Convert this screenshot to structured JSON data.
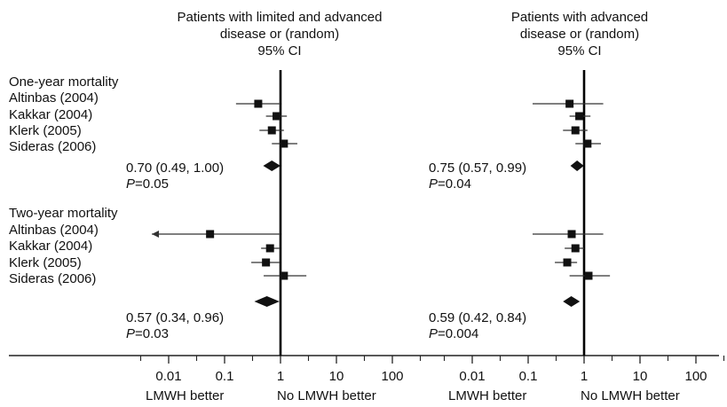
{
  "panels": [
    {
      "header": [
        "Patients with limited and advanced",
        "disease or (random)",
        "95% CI"
      ],
      "groups": [
        {
          "title": "One-year mortality",
          "pooled": {
            "estimate": 0.7,
            "ci": [
              0.49,
              1.0
            ],
            "text": "0.70 (0.49, 1.00)",
            "p_label": "P",
            "p_value": "=0.05"
          },
          "studies": [
            {
              "name": "Altinbas (2004)",
              "estimate": 0.4,
              "ci": [
                0.16,
                1.0
              ]
            },
            {
              "name": "Kakkar (2004)",
              "estimate": 0.85,
              "ci": [
                0.55,
                1.3
              ]
            },
            {
              "name": "Klerk (2005)",
              "estimate": 0.7,
              "ci": [
                0.42,
                1.15
              ]
            },
            {
              "name": "Sideras (2006)",
              "estimate": 1.15,
              "ci": [
                0.7,
                2.0
              ]
            }
          ]
        },
        {
          "title": "Two-year mortality",
          "pooled": {
            "estimate": 0.57,
            "ci": [
              0.34,
              0.96
            ],
            "text": "0.57 (0.34, 0.96)",
            "p_label": "P",
            "p_value": "=0.03"
          },
          "studies": [
            {
              "name": "Altinbas (2004)",
              "estimate": 0.055,
              "ci": [
                0.005,
                1.0
              ],
              "arrow_left": true
            },
            {
              "name": "Kakkar (2004)",
              "estimate": 0.65,
              "ci": [
                0.45,
                0.95
              ]
            },
            {
              "name": "Klerk (2005)",
              "estimate": 0.55,
              "ci": [
                0.3,
                0.95
              ]
            },
            {
              "name": "Sideras (2006)",
              "estimate": 1.15,
              "ci": [
                0.5,
                2.9
              ]
            }
          ]
        }
      ]
    },
    {
      "header": [
        "Patients with advanced",
        "disease or (random)",
        "95% CI"
      ],
      "groups": [
        {
          "title": "",
          "pooled": {
            "estimate": 0.75,
            "ci": [
              0.57,
              0.99
            ],
            "text": "0.75 (0.57, 0.99)",
            "p_label": "P",
            "p_value": "=0.04"
          },
          "studies": [
            {
              "name": "Altinbas (2004)",
              "estimate": 0.55,
              "ci": [
                0.12,
                2.2
              ]
            },
            {
              "name": "Kakkar (2004)",
              "estimate": 0.82,
              "ci": [
                0.55,
                1.3
              ]
            },
            {
              "name": "Klerk (2005)",
              "estimate": 0.7,
              "ci": [
                0.42,
                1.15
              ]
            },
            {
              "name": "Sideras (2006)",
              "estimate": 1.15,
              "ci": [
                0.7,
                2.0
              ]
            }
          ]
        },
        {
          "title": "",
          "pooled": {
            "estimate": 0.59,
            "ci": [
              0.42,
              0.84
            ],
            "text": "0.59 (0.42, 0.84)",
            "p_label": "P",
            "p_value": "=0.004"
          },
          "studies": [
            {
              "name": "Altinbas (2004)",
              "estimate": 0.6,
              "ci": [
                0.12,
                2.2
              ]
            },
            {
              "name": "Kakkar (2004)",
              "estimate": 0.7,
              "ci": [
                0.45,
                1.0
              ]
            },
            {
              "name": "Klerk (2005)",
              "estimate": 0.5,
              "ci": [
                0.3,
                0.75
              ]
            },
            {
              "name": "Sideras (2006)",
              "estimate": 1.2,
              "ci": [
                0.55,
                2.9
              ]
            }
          ]
        }
      ]
    }
  ],
  "x_axis": {
    "scale": "log",
    "range": [
      0.004,
      250
    ],
    "ticks": [
      0.01,
      0.1,
      1,
      10,
      100
    ],
    "tick_labels": [
      "0.01",
      "0.1",
      "1",
      "10",
      "100"
    ],
    "reference_line": 1,
    "left_label": "LMWH better",
    "right_label": "No LMWH better"
  },
  "chart_data": {
    "type": "forest",
    "x_scale": "log",
    "xlim": [
      0.004,
      250
    ],
    "reference": 1,
    "panels": [
      {
        "title": "Patients with limited and advanced disease or (random) 95% CI",
        "one_year": {
          "studies": [
            "Altinbas (2004)",
            "Kakkar (2004)",
            "Klerk (2005)",
            "Sideras (2006)"
          ],
          "estimates": [
            0.4,
            0.85,
            0.7,
            1.15
          ],
          "pooled": 0.7,
          "pooled_ci": [
            0.49,
            1.0
          ],
          "p": 0.05
        },
        "two_year": {
          "studies": [
            "Altinbas (2004)",
            "Kakkar (2004)",
            "Klerk (2005)",
            "Sideras (2006)"
          ],
          "estimates": [
            0.055,
            0.65,
            0.55,
            1.15
          ],
          "pooled": 0.57,
          "pooled_ci": [
            0.34,
            0.96
          ],
          "p": 0.03
        }
      },
      {
        "title": "Patients with advanced disease or (random) 95% CI",
        "one_year": {
          "studies": [
            "Altinbas (2004)",
            "Kakkar (2004)",
            "Klerk (2005)",
            "Sideras (2006)"
          ],
          "estimates": [
            0.55,
            0.82,
            0.7,
            1.15
          ],
          "pooled": 0.75,
          "pooled_ci": [
            0.57,
            0.99
          ],
          "p": 0.04
        },
        "two_year": {
          "studies": [
            "Altinbas (2004)",
            "Kakkar (2004)",
            "Klerk (2005)",
            "Sideras (2006)"
          ],
          "estimates": [
            0.6,
            0.7,
            0.5,
            1.2
          ],
          "pooled": 0.59,
          "pooled_ci": [
            0.42,
            0.84
          ],
          "p": 0.004
        }
      }
    ]
  }
}
